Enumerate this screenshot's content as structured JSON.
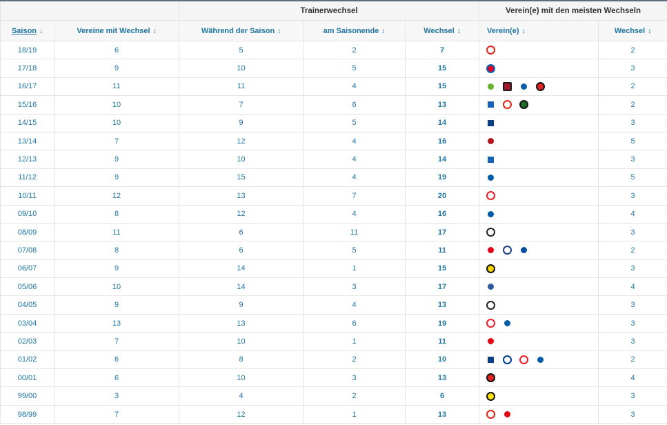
{
  "header": {
    "group_trainerwechsel": "Trainerwechsel",
    "group_vereine": "Verein(e) mit den meisten Wechseln",
    "col_saison": "Saison",
    "col_vereine_mit_wechsel": "Vereine mit Wechsel",
    "col_waehrend": "Während der Saison",
    "col_saisonende": "am Saisonende",
    "col_wechsel": "Wechsel",
    "col_vereine": "Verein(e)",
    "col_wechsel2": "Wechsel",
    "sort_active": "↓",
    "sort_icon": "↕"
  },
  "colors": {
    "link": "#1d75a3",
    "header_border": "#5b6b7f"
  },
  "rows": [
    {
      "saison": "18/19",
      "vereine": "6",
      "waehrend": "5",
      "ende": "2",
      "wechsel": "7",
      "clubs": [
        "vfb-stuttgart"
      ],
      "anzahl": "2"
    },
    {
      "saison": "17/18",
      "vereine": "9",
      "waehrend": "10",
      "ende": "5",
      "wechsel": "15",
      "clubs": [
        "fc-bayern"
      ],
      "anzahl": "3"
    },
    {
      "saison": "16/17",
      "vereine": "11",
      "waehrend": "11",
      "ende": "4",
      "wechsel": "15",
      "clubs": [
        "vfl-wolfsburg",
        "fc-ingolstadt",
        "darmstadt",
        "bayer-leverkusen"
      ],
      "anzahl": "2"
    },
    {
      "saison": "15/16",
      "vereine": "10",
      "waehrend": "7",
      "ende": "6",
      "wechsel": "13",
      "clubs": [
        "hoffenheim",
        "vfb-stuttgart",
        "hannover-96"
      ],
      "anzahl": "2"
    },
    {
      "saison": "14/15",
      "vereine": "10",
      "waehrend": "9",
      "ende": "5",
      "wechsel": "14",
      "clubs": [
        "hamburger-sv"
      ],
      "anzahl": "3"
    },
    {
      "saison": "13/14",
      "vereine": "7",
      "waehrend": "12",
      "ende": "4",
      "wechsel": "16",
      "clubs": [
        "fc-nuernberg"
      ],
      "anzahl": "5"
    },
    {
      "saison": "12/13",
      "vereine": "9",
      "waehrend": "10",
      "ende": "4",
      "wechsel": "14",
      "clubs": [
        "hoffenheim"
      ],
      "anzahl": "3"
    },
    {
      "saison": "11/12",
      "vereine": "9",
      "waehrend": "15",
      "ende": "4",
      "wechsel": "19",
      "clubs": [
        "hertha-bsc"
      ],
      "anzahl": "5"
    },
    {
      "saison": "10/11",
      "vereine": "12",
      "waehrend": "13",
      "ende": "7",
      "wechsel": "20",
      "clubs": [
        "fc-koeln"
      ],
      "anzahl": "3"
    },
    {
      "saison": "09/10",
      "vereine": "8",
      "waehrend": "12",
      "ende": "4",
      "wechsel": "16",
      "clubs": [
        "vfl-bochum"
      ],
      "anzahl": "4"
    },
    {
      "saison": "08/09",
      "vereine": "11",
      "waehrend": "6",
      "ende": "11",
      "wechsel": "17",
      "clubs": [
        "gladbach"
      ],
      "anzahl": "3"
    },
    {
      "saison": "07/08",
      "vereine": "8",
      "waehrend": "6",
      "ende": "5",
      "wechsel": "11",
      "clubs": [
        "energie-cottbus",
        "arminia-bielefeld",
        "schalke-04"
      ],
      "anzahl": "2"
    },
    {
      "saison": "06/07",
      "vereine": "9",
      "waehrend": "14",
      "ende": "1",
      "wechsel": "15",
      "clubs": [
        "alemannia-aachen"
      ],
      "anzahl": "3"
    },
    {
      "saison": "05/06",
      "vereine": "10",
      "waehrend": "14",
      "ende": "3",
      "wechsel": "17",
      "clubs": [
        "msv-duisburg"
      ],
      "anzahl": "4"
    },
    {
      "saison": "04/05",
      "vereine": "9",
      "waehrend": "9",
      "ende": "4",
      "wechsel": "13",
      "clubs": [
        "gladbach"
      ],
      "anzahl": "3"
    },
    {
      "saison": "03/04",
      "vereine": "13",
      "waehrend": "13",
      "ende": "6",
      "wechsel": "19",
      "clubs": [
        "fc-koeln",
        "hertha-bsc"
      ],
      "anzahl": "3"
    },
    {
      "saison": "02/03",
      "vereine": "7",
      "waehrend": "10",
      "ende": "1",
      "wechsel": "11",
      "clubs": [
        "kaiserslautern"
      ],
      "anzahl": "3"
    },
    {
      "saison": "01/02",
      "vereine": "6",
      "waehrend": "8",
      "ende": "2",
      "wechsel": "10",
      "clubs": [
        "hamburger-sv",
        "hansa-rostock",
        "fc-koeln",
        "hertha-bsc"
      ],
      "anzahl": "2"
    },
    {
      "saison": "00/01",
      "vereine": "6",
      "waehrend": "10",
      "ende": "3",
      "wechsel": "13",
      "clubs": [
        "bayer-leverkusen"
      ],
      "anzahl": "4"
    },
    {
      "saison": "99/00",
      "vereine": "3",
      "waehrend": "4",
      "ende": "2",
      "wechsel": "6",
      "clubs": [
        "borussia-dortmund"
      ],
      "anzahl": "3"
    },
    {
      "saison": "98/99",
      "vereine": "7",
      "waehrend": "12",
      "ende": "1",
      "wechsel": "13",
      "clubs": [
        "vfb-stuttgart",
        "eintracht-frankfurt"
      ],
      "anzahl": "3"
    }
  ]
}
